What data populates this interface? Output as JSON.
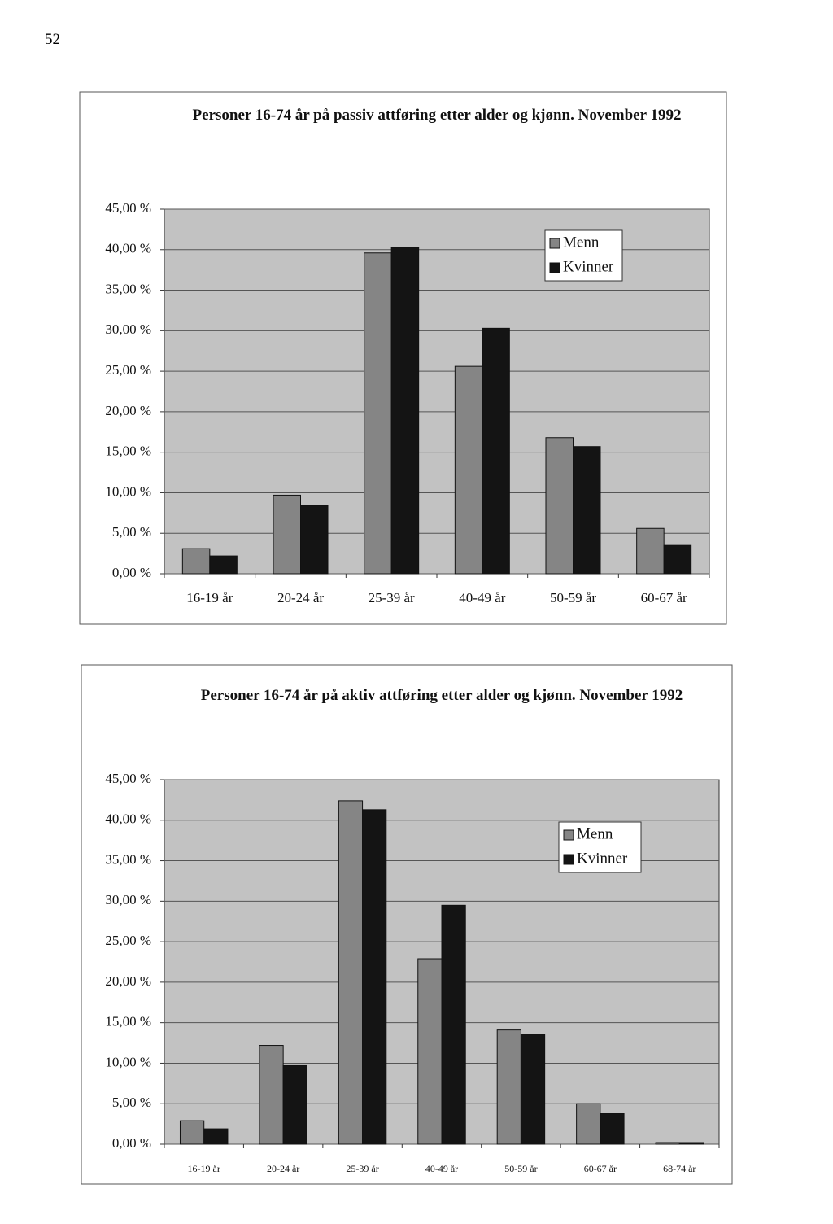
{
  "page_number": "52",
  "chart_data": [
    {
      "type": "bar",
      "title": "Personer 16-74 år på passiv attføring etter alder og kjønn. November 1992",
      "categories": [
        "16-19 år",
        "20-24 år",
        "25-39 år",
        "40-49 år",
        "50-59 år",
        "60-67 år"
      ],
      "series": [
        {
          "name": "Menn",
          "color": "#858585",
          "values": [
            3.1,
            9.7,
            39.6,
            25.6,
            16.8,
            5.6
          ]
        },
        {
          "name": "Kvinner",
          "color": "#141414",
          "values": [
            2.2,
            8.4,
            40.3,
            30.3,
            15.7,
            3.5
          ]
        }
      ],
      "ylim": [
        0,
        45
      ],
      "yticks": [
        {
          "value": 0,
          "label": "0,00 %"
        },
        {
          "value": 5,
          "label": "5,00 %"
        },
        {
          "value": 10,
          "label": "10,00 %"
        },
        {
          "value": 15,
          "label": "15,00 %"
        },
        {
          "value": 20,
          "label": "20,00 %"
        },
        {
          "value": 25,
          "label": "25,00 %"
        },
        {
          "value": 30,
          "label": "30,00 %"
        },
        {
          "value": 35,
          "label": "35,00 %"
        },
        {
          "value": 40,
          "label": "40,00 %"
        },
        {
          "value": 45,
          "label": "45,00 %"
        }
      ],
      "grid": true,
      "legend": "upper right"
    },
    {
      "type": "bar",
      "title": "Personer 16-74 år på aktiv attføring etter alder og kjønn. November 1992",
      "categories": [
        "16-19 år",
        "20-24 år",
        "25-39 år",
        "40-49 år",
        "50-59 år",
        "60-67 år",
        "68-74 år"
      ],
      "series": [
        {
          "name": "Menn",
          "color": "#858585",
          "values": [
            2.9,
            12.2,
            42.4,
            22.9,
            14.1,
            5.0,
            0.2
          ]
        },
        {
          "name": "Kvinner",
          "color": "#141414",
          "values": [
            1.9,
            9.7,
            41.3,
            29.5,
            13.6,
            3.8,
            0.2
          ]
        }
      ],
      "ylim": [
        0,
        45
      ],
      "yticks": [
        {
          "value": 0,
          "label": "0,00 %"
        },
        {
          "value": 5,
          "label": "5,00 %"
        },
        {
          "value": 10,
          "label": "10,00 %"
        },
        {
          "value": 15,
          "label": "15,00 %"
        },
        {
          "value": 20,
          "label": "20,00 %"
        },
        {
          "value": 25,
          "label": "25,00 %"
        },
        {
          "value": 30,
          "label": "30,00 %"
        },
        {
          "value": 35,
          "label": "35,00 %"
        },
        {
          "value": 40,
          "label": "40,00 %"
        },
        {
          "value": 45,
          "label": "45,00 %"
        }
      ],
      "grid": true,
      "legend": "upper right"
    }
  ]
}
